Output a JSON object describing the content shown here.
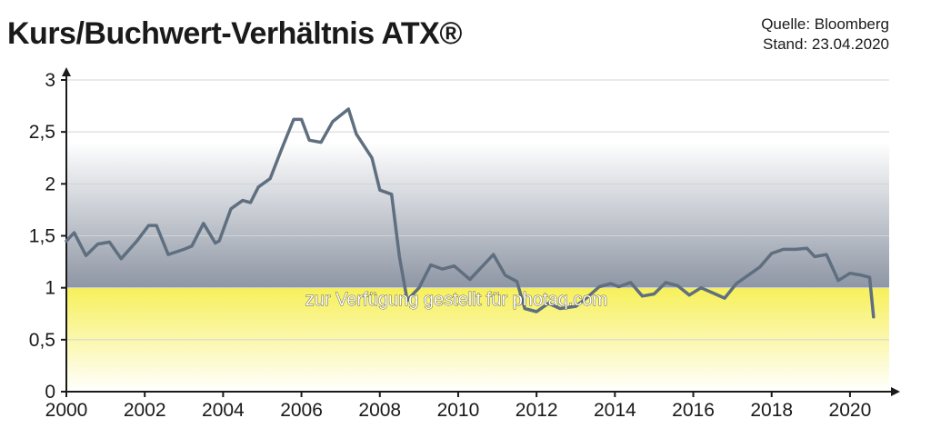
{
  "header": {
    "title": "Kurs/Buchwert-Verhältnis ATX®",
    "source": "Quelle: Bloomberg",
    "date": "Stand: 23.04.2020"
  },
  "watermark": "zur Verfügung gestellt für photaq.com",
  "chart_data": {
    "type": "line",
    "title": "Kurs/Buchwert-Verhältnis ATX®",
    "xlabel": "",
    "ylabel": "",
    "xlim": [
      2000,
      2021
    ],
    "ylim": [
      0,
      3
    ],
    "x_ticks": [
      "2000",
      "2002",
      "2004",
      "2006",
      "2008",
      "2010",
      "2012",
      "2014",
      "2016",
      "2018",
      "2020"
    ],
    "y_ticks": [
      "0",
      "0,5",
      "1",
      "1,5",
      "2",
      "2,5",
      "3"
    ],
    "reference_line": 1,
    "grid": true,
    "colors": {
      "line": "#5f6f80",
      "band_low": "#f7f05a",
      "band_high": "#8e96a4",
      "grid": "#d0d4da"
    },
    "series": [
      {
        "x": [
          2000.0,
          2000.2,
          2000.5,
          2000.8,
          2001.1,
          2001.4,
          2001.8,
          2002.1,
          2002.3,
          2002.6,
          2003.0,
          2003.2,
          2003.5,
          2003.8,
          2003.9,
          2004.2,
          2004.5,
          2004.7,
          2004.9,
          2005.2,
          2005.5,
          2005.8,
          2006.0,
          2006.2,
          2006.5,
          2006.8,
          2007.2,
          2007.4,
          2007.8,
          2008.0,
          2008.3,
          2008.5,
          2008.7,
          2009.0,
          2009.3,
          2009.6,
          2009.9,
          2010.3,
          2010.6,
          2010.9,
          2011.2,
          2011.5,
          2011.7,
          2012.0,
          2012.3,
          2012.6,
          2013.0,
          2013.3,
          2013.6,
          2013.9,
          2014.1,
          2014.4,
          2014.7,
          2015.0,
          2015.3,
          2015.6,
          2015.9,
          2016.2,
          2016.5,
          2016.8,
          2017.1,
          2017.4,
          2017.7,
          2018.0,
          2018.3,
          2018.6,
          2018.9,
          2019.1,
          2019.4,
          2019.7,
          2020.0,
          2020.3,
          2020.5,
          2020.6
        ],
        "y": [
          1.45,
          1.53,
          1.31,
          1.42,
          1.44,
          1.28,
          1.45,
          1.6,
          1.6,
          1.32,
          1.37,
          1.4,
          1.62,
          1.43,
          1.45,
          1.76,
          1.84,
          1.82,
          1.97,
          2.05,
          2.34,
          2.62,
          2.62,
          2.42,
          2.4,
          2.6,
          2.72,
          2.48,
          2.25,
          1.94,
          1.9,
          1.3,
          0.88,
          1.0,
          1.22,
          1.18,
          1.21,
          1.08,
          1.2,
          1.32,
          1.12,
          1.06,
          0.8,
          0.77,
          0.85,
          0.8,
          0.82,
          0.91,
          1.01,
          1.04,
          1.01,
          1.05,
          0.92,
          0.94,
          1.05,
          1.02,
          0.93,
          1.0,
          0.95,
          0.9,
          1.04,
          1.12,
          1.2,
          1.33,
          1.37,
          1.37,
          1.38,
          1.3,
          1.32,
          1.07,
          1.14,
          1.12,
          1.1,
          0.72
        ]
      }
    ]
  }
}
